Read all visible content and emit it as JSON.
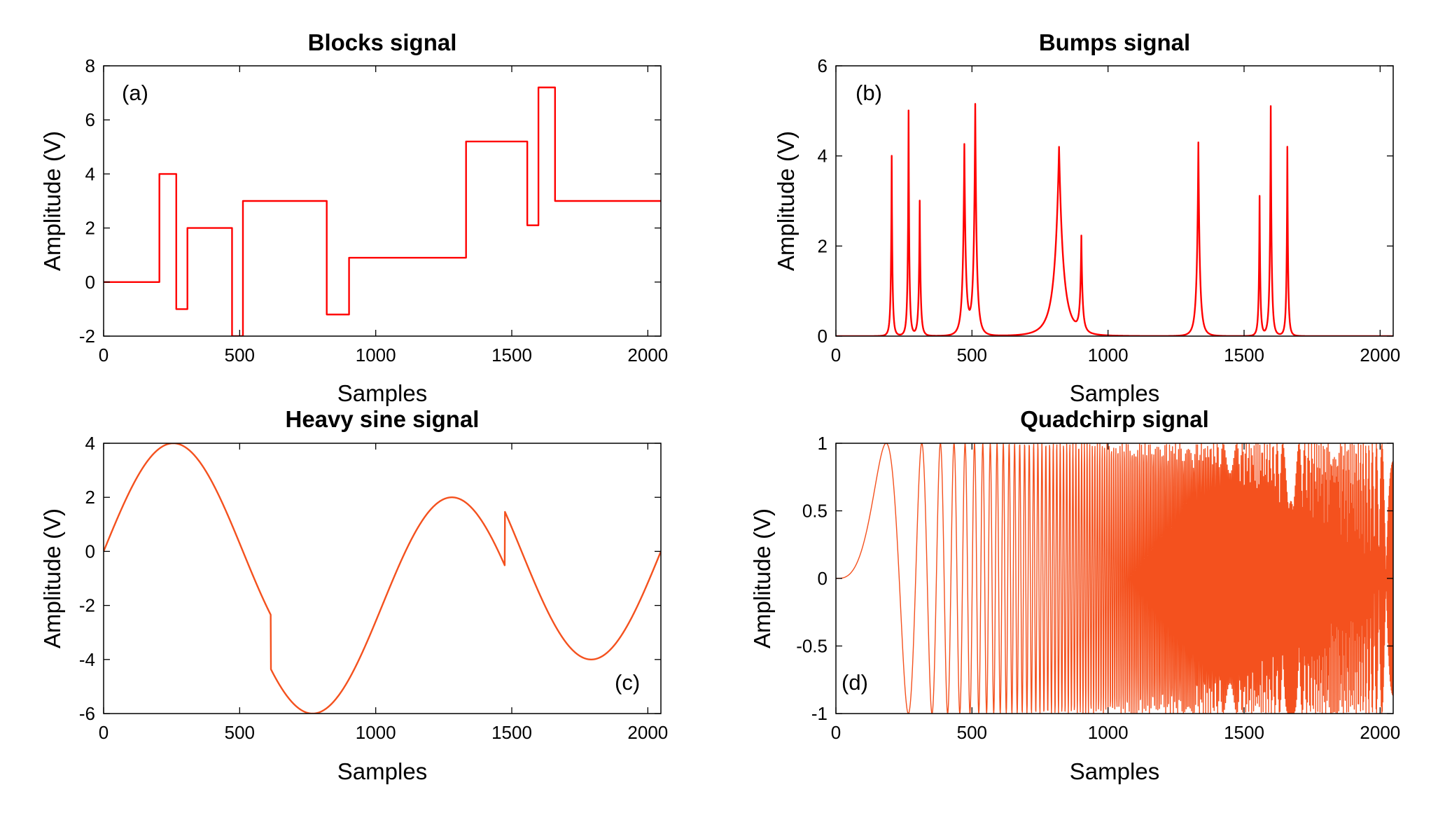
{
  "chart_data": [
    {
      "type": "line",
      "title": "Blocks signal",
      "xlabel": "Samples",
      "ylabel": "Amplitude (V)",
      "panel_label": "(a)",
      "label_corner": "top-left",
      "xlim": [
        0,
        2048
      ],
      "ylim": [
        -2,
        8
      ],
      "xticks": [
        0,
        500,
        1000,
        1500,
        2000
      ],
      "yticks": [
        -2,
        0,
        2,
        4,
        6,
        8
      ],
      "color": "#ff0000",
      "x": [
        0,
        205,
        205,
        267,
        267,
        308,
        308,
        472,
        472,
        512,
        512,
        820,
        820,
        902,
        902,
        1332,
        1332,
        1557,
        1557,
        1598,
        1598,
        1659,
        1659,
        2048
      ],
      "y": [
        0,
        0,
        4,
        4,
        -1,
        -1,
        2,
        2,
        -2,
        -2,
        3,
        3,
        -1.2,
        -1.2,
        0.9,
        0.9,
        5.2,
        5.2,
        2.1,
        2.1,
        7.2,
        7.2,
        3,
        3
      ]
    },
    {
      "type": "line",
      "title": "Bumps signal",
      "xlabel": "Samples",
      "ylabel": "Amplitude (V)",
      "panel_label": "(b)",
      "label_corner": "top-left",
      "xlim": [
        0,
        2048
      ],
      "ylim": [
        0,
        6
      ],
      "xticks": [
        0,
        500,
        1000,
        1500,
        2000
      ],
      "yticks": [
        0,
        2,
        4,
        6
      ],
      "color": "#ff0000",
      "bumps": [
        {
          "center": 205,
          "height": 4.0,
          "width": 10
        },
        {
          "center": 267,
          "height": 5.0,
          "width": 10
        },
        {
          "center": 308,
          "height": 3.0,
          "width": 12
        },
        {
          "center": 472,
          "height": 4.2,
          "width": 20
        },
        {
          "center": 512,
          "height": 5.1,
          "width": 20
        },
        {
          "center": 820,
          "height": 4.2,
          "width": 60
        },
        {
          "center": 902,
          "height": 2.1,
          "width": 16
        },
        {
          "center": 1332,
          "height": 4.3,
          "width": 20
        },
        {
          "center": 1557,
          "height": 3.1,
          "width": 10
        },
        {
          "center": 1598,
          "height": 5.1,
          "width": 12
        },
        {
          "center": 1659,
          "height": 4.2,
          "width": 10
        }
      ]
    },
    {
      "type": "line",
      "title": "Heavy sine signal",
      "xlabel": "Samples",
      "ylabel": "Amplitude (V)",
      "panel_label": "(c)",
      "label_corner": "bottom-right",
      "xlim": [
        0,
        2048
      ],
      "ylim": [
        -6,
        4
      ],
      "xticks": [
        0,
        500,
        1000,
        1500,
        2000
      ],
      "yticks": [
        -6,
        -4,
        -2,
        0,
        2,
        4
      ],
      "color": "#f4511e",
      "formula": "4*sin(4*pi*t) - sign(t-0.3) - sign(0.72-t), t = x/2048",
      "amplitude": 4,
      "jumps_at": [
        614,
        1475
      ]
    },
    {
      "type": "line",
      "title": "Quadchirp signal",
      "xlabel": "Samples",
      "ylabel": "Amplitude (V)",
      "panel_label": "(d)",
      "label_corner": "bottom-left",
      "xlim": [
        0,
        2048
      ],
      "ylim": [
        -1,
        1
      ],
      "xticks": [
        0,
        500,
        1000,
        1500,
        2000
      ],
      "yticks": [
        -1,
        -0.5,
        0,
        0.5,
        1
      ],
      "color": "#f4511e",
      "formula": "sin((pi/3)*2048*t^3), t = x/2048",
      "phase_scale": 2144.66
    }
  ]
}
